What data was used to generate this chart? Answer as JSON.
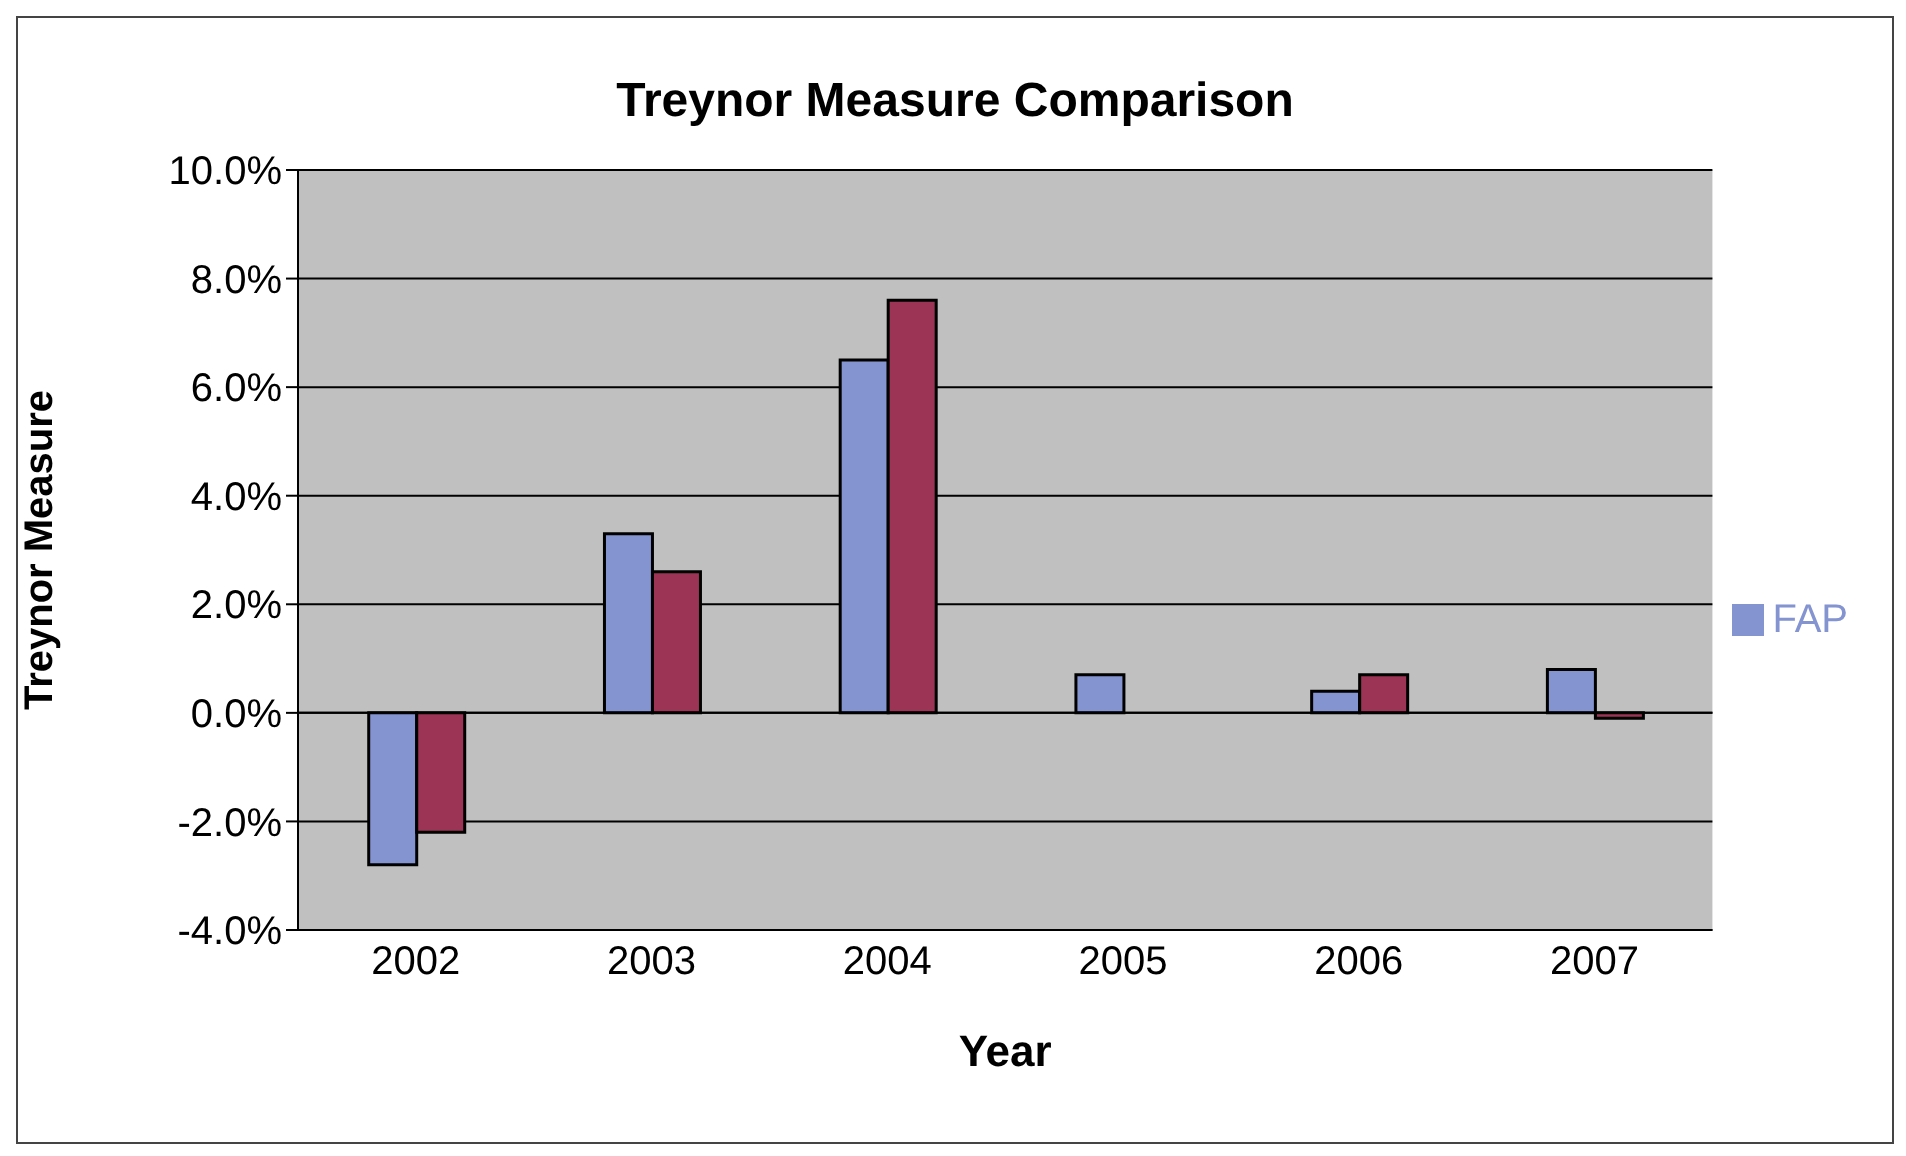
{
  "chart_data": {
    "type": "bar",
    "title": "Treynor Measure Comparison",
    "xlabel": "Year",
    "ylabel": "Treynor Measure",
    "categories": [
      "2002",
      "2003",
      "2004",
      "2005",
      "2006",
      "2007"
    ],
    "series": [
      {
        "name": "FAP",
        "color": "#8494d0",
        "values": [
          -2.8,
          3.3,
          6.5,
          0.7,
          0.4,
          0.8
        ]
      },
      {
        "color": "#9b3455",
        "values": [
          -2.2,
          2.6,
          7.6,
          0,
          0.7,
          -0.1
        ]
      }
    ],
    "ylim": [
      -4,
      10
    ],
    "yticks": [
      {
        "value": -4,
        "label": "-4.0%"
      },
      {
        "value": -2,
        "label": "-2.0%"
      },
      {
        "value": 0,
        "label": "0.0%"
      },
      {
        "value": 2,
        "label": "2.0%"
      },
      {
        "value": 4,
        "label": "4.0%"
      },
      {
        "value": 6,
        "label": "6.0%"
      },
      {
        "value": 8,
        "label": "8.0%"
      },
      {
        "value": 10,
        "label": "10.0%"
      }
    ],
    "grid": "y",
    "legend": "right"
  }
}
